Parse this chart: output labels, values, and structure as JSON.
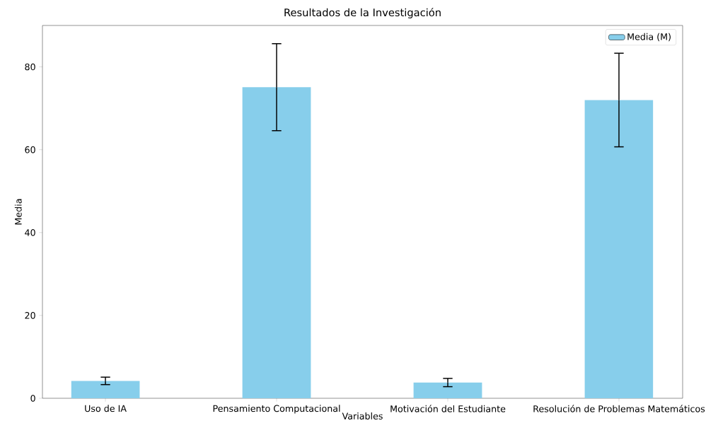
{
  "chart_data": {
    "type": "bar",
    "title": "Resultados de la Investigación",
    "xlabel": "Variables",
    "ylabel": "Media",
    "categories": [
      "Uso de IA",
      "Pensamiento Computacional",
      "Motivación del Estudiante",
      "Resolución de Problemas Matemáticos"
    ],
    "series": [
      {
        "name": "Media (M)",
        "color": "#87ceeb",
        "values": [
          4.2,
          75.1,
          3.8,
          72.0
        ],
        "errors": [
          0.9,
          10.5,
          1.0,
          11.3
        ]
      }
    ],
    "ylim": [
      0,
      90
    ],
    "yticks": [
      0,
      20,
      40,
      60,
      80
    ],
    "grid": false,
    "legend": "top right"
  }
}
